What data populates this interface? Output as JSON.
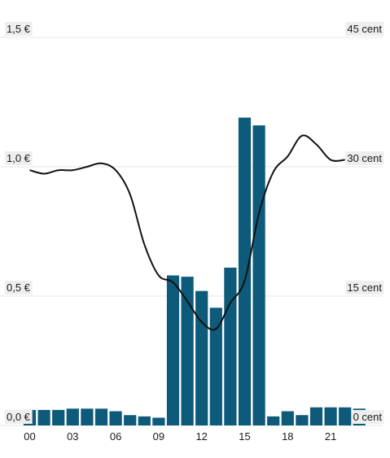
{
  "chart_data": {
    "type": "bar",
    "title": "",
    "xlabel": "",
    "ylabel": "",
    "x_ticks": [
      "00",
      "03",
      "06",
      "09",
      "12",
      "15",
      "18",
      "21"
    ],
    "left_axis": {
      "ticks": [
        "0,0 €",
        "0,5 €",
        "1,0 €",
        "1,5 €"
      ],
      "ylim": [
        0,
        1.5
      ]
    },
    "right_axis": {
      "ticks": [
        "0 cent",
        "15 cent",
        "30 cent",
        "45 cent"
      ],
      "ylim": [
        0,
        45
      ]
    },
    "grid": true,
    "colors": {
      "bars": "#0d5a7a",
      "line": "#111111"
    },
    "categories": [
      "00",
      "01",
      "02",
      "03",
      "04",
      "05",
      "06",
      "07",
      "08",
      "09",
      "10",
      "11",
      "12",
      "13",
      "14",
      "15",
      "16",
      "17",
      "18",
      "19",
      "20",
      "21",
      "22",
      "23"
    ],
    "series": [
      {
        "axis": "left",
        "kind": "bar",
        "values": [
          0.06,
          0.06,
          0.06,
          0.065,
          0.065,
          0.065,
          0.055,
          0.04,
          0.035,
          0.03,
          0.58,
          0.575,
          0.52,
          0.455,
          0.61,
          1.19,
          1.16,
          0.035,
          0.055,
          0.04,
          0.07,
          0.07,
          0.07,
          0.065
        ]
      },
      {
        "axis": "right",
        "kind": "line",
        "x": [
          0,
          1,
          2,
          3,
          4,
          5,
          6,
          7,
          8,
          9,
          10,
          11,
          12,
          13,
          14,
          15,
          16,
          17,
          18,
          19,
          20,
          21,
          22
        ],
        "values": [
          29.6,
          29.2,
          29.6,
          29.6,
          30.0,
          30.4,
          29.6,
          26.8,
          21.0,
          17.4,
          16.6,
          14.4,
          12.0,
          11.2,
          14.2,
          16.8,
          24.6,
          29.4,
          31.2,
          33.6,
          32.6,
          30.8,
          30.8
        ]
      }
    ]
  }
}
